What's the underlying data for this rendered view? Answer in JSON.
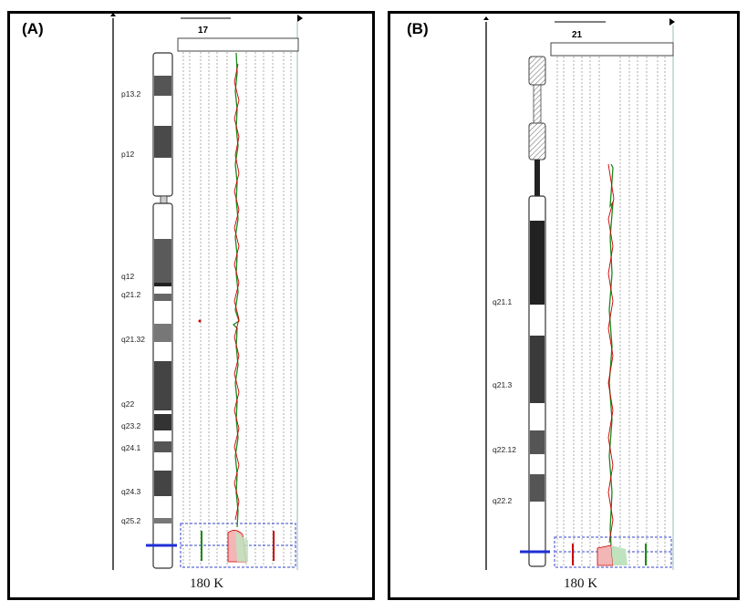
{
  "panels": [
    {
      "label": "(A)",
      "chromosome": "17",
      "footer": "180 K",
      "axis_ticks": [
        "-4",
        "-2",
        "-1",
        "0",
        "+1",
        "+2",
        "+4"
      ],
      "bands": [
        "p13.2",
        "p12",
        "q12",
        "q21.2",
        "q21.32",
        "q22",
        "q23.2",
        "q24.1",
        "q24.3",
        "q25.2"
      ]
    },
    {
      "label": "(B)",
      "chromosome": "21",
      "footer": "180 K",
      "axis_ticks": [
        "-4",
        "-2",
        "-1",
        "0",
        "+1",
        "+2",
        "+4"
      ],
      "bands": [
        "q21.1",
        "q21.3",
        "q22.12",
        "q22.2"
      ]
    }
  ],
  "colors": {
    "gain": "#cc0000",
    "loss": "#1a8a1a",
    "marker": "#1f2fd6",
    "box": "#3344cc"
  }
}
